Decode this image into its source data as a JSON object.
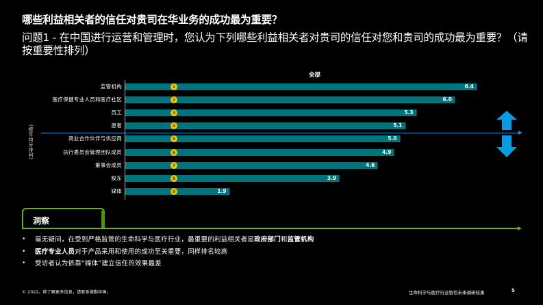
{
  "header": {
    "title": "哪些利益相关者的信任对贵司在华业务的成功最为重要？",
    "question": "问题1 - 在中国进行运营和管理时，您认为下列哪些利益相关者对贵司的信任对您和贵司的成功最为重要？（请按重要性排列）"
  },
  "chart_data": {
    "type": "bar",
    "orientation": "horizontal",
    "title": "全部",
    "xlabel": "",
    "ylabel": "(按平均分排列)",
    "categories": [
      "监管机构",
      "医疗保健专业人员和医疗社区",
      "员工",
      "患者",
      "商业合作伙伴与供应商",
      "执行委员会管理团队成员",
      "董事会成员",
      "股东",
      "媒体"
    ],
    "values": [
      6.4,
      6.0,
      5.3,
      5.1,
      5.0,
      4.9,
      4.6,
      3.9,
      1.9
    ],
    "ranks": [
      "1",
      "2",
      "3",
      "4",
      "5",
      "6",
      "7",
      "8",
      "9"
    ],
    "value_labels": [
      "6.4",
      "6.0",
      "5.3",
      "5.1",
      "5.0",
      "4.9",
      "4.6",
      "3.9",
      "1.9"
    ],
    "divider_after_index": 3,
    "bar_color": "#00747c",
    "rank_badge_color": "#f0c800",
    "divider_color": "#1a8fd0",
    "annotations": [
      "up-arrow above divider",
      "down-arrow below divider"
    ],
    "grid": false,
    "legend": null
  },
  "insight": {
    "label": "洞察",
    "accent_color": "#6ab023",
    "bullets": [
      {
        "parts": [
          {
            "text": "毫无疑问，在受到严格监管的生命科学与医疗行业，最重要的利益相关者是",
            "bold": false
          },
          {
            "text": "政府部门",
            "bold": true
          },
          {
            "text": "和",
            "bold": false
          },
          {
            "text": "监管机构",
            "bold": true
          }
        ]
      },
      {
        "parts": [
          {
            "text": "医疗专业人员",
            "bold": true
          },
          {
            "text": "对于产品采用和使用的成功至关重要，同样排名较高",
            "bold": false
          }
        ]
      },
      {
        "parts": [
          {
            "text": "受访者认为依靠“媒体”建立信任的效果最差",
            "bold": false
          }
        ]
      }
    ]
  },
  "footer": {
    "left": "© 2022。欲了解更多信息，请联系德勤中国。",
    "right": "生命科学与医疗行业智信未来调研结果",
    "page": "5"
  }
}
